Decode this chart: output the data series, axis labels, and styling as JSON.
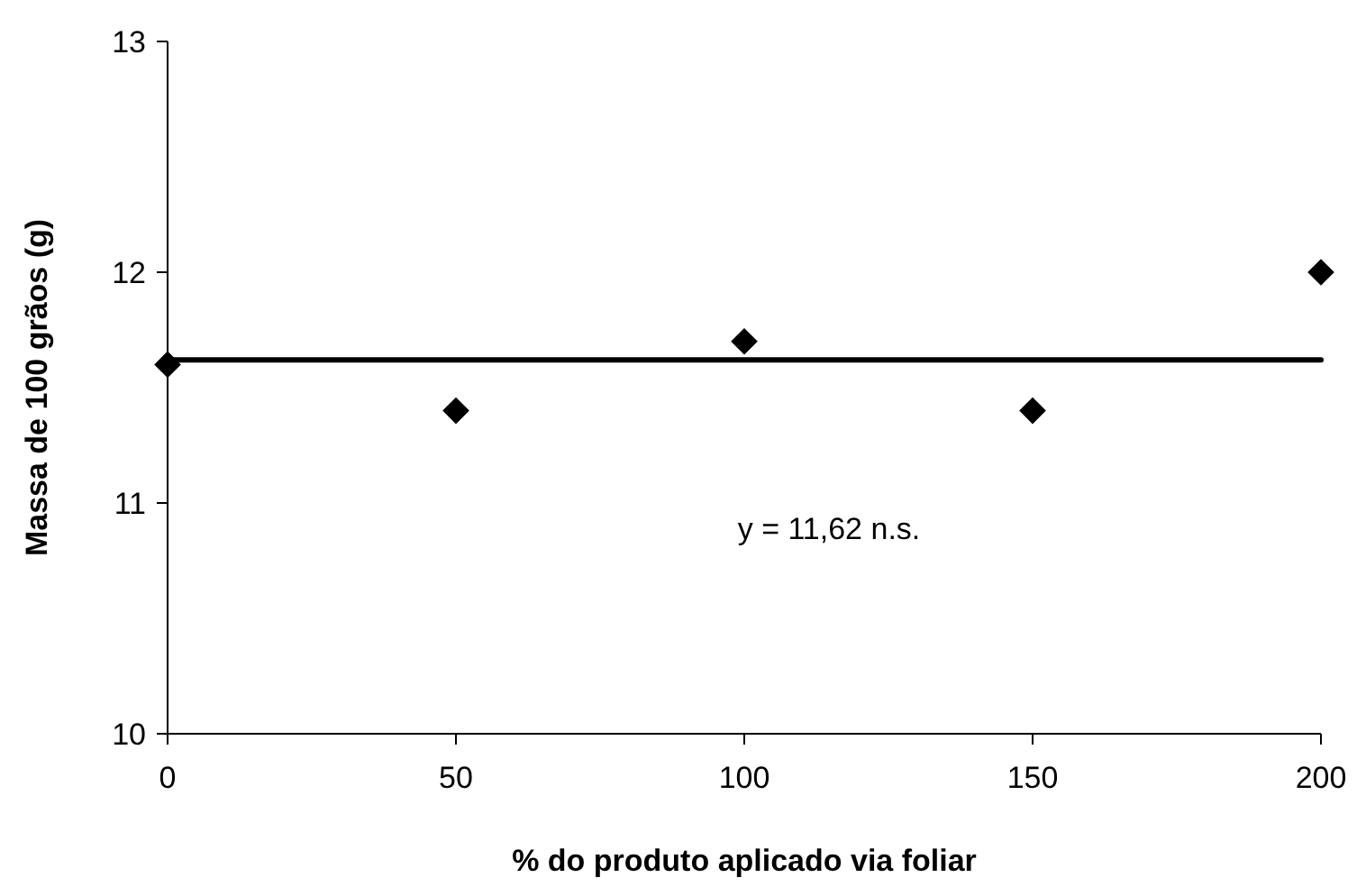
{
  "chart_data": {
    "type": "scatter",
    "xlabel": "% do produto aplicado via foliar",
    "ylabel": "Massa de 100 grãos (g)",
    "x": [
      0,
      50,
      100,
      150,
      200
    ],
    "series": [
      {
        "color": "#000000",
        "marker": "diamond",
        "values": [
          11.6,
          11.4,
          11.7,
          11.4,
          12.0
        ]
      },
      {
        "type": "line",
        "color": "#000000",
        "marker": "none",
        "line_style": "solid",
        "x": [
          0,
          200
        ],
        "values": [
          11.62,
          11.62
        ]
      }
    ],
    "annotations": [
      "y = 11,62 n.s."
    ],
    "xlim": [
      0,
      200
    ],
    "xticks": [
      0,
      50,
      100,
      150,
      200
    ],
    "ylim": [
      10,
      13
    ],
    "yticks": [
      10,
      11,
      12,
      13
    ],
    "grid": false
  }
}
